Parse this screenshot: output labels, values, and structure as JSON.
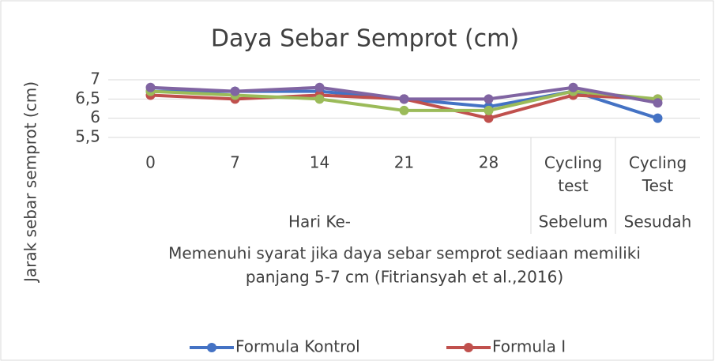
{
  "chart_data": {
    "type": "line",
    "title": "Daya Sebar Semprot (cm)",
    "ylabel": "Jarak sebar semprot (cm)",
    "xlabel": [
      "Memenuhi syarat jika daya sebar semprot sediaan memiliki",
      "panjang 5-7 cm (Fitriansyah et al.,2016)"
    ],
    "categories": [
      "0",
      "7",
      "14",
      "21",
      "28",
      "Cycling test",
      "Cycling Test"
    ],
    "category_groups": [
      {
        "label": "Hari Ke-",
        "span": 5
      },
      {
        "label": "Sebelum",
        "span": 1
      },
      {
        "label": "Sesudah",
        "span": 1
      }
    ],
    "ylim": [
      5.5,
      7
    ],
    "yticks": [
      {
        "value": 5.5,
        "label": "5,5"
      },
      6,
      {
        "value": 6.5,
        "label": "6,5"
      },
      7
    ],
    "grid": true,
    "legend": "bottom",
    "series": [
      {
        "name": "Formula Kontrol",
        "color": "#4472c4",
        "values": [
          6.7,
          6.7,
          6.7,
          6.5,
          6.3,
          6.7,
          6.0
        ]
      },
      {
        "name": "Formula I",
        "color": "#c0504d",
        "values": [
          6.6,
          6.5,
          6.6,
          6.5,
          6.0,
          6.6,
          6.5
        ]
      },
      {
        "color": "#9bbb59",
        "values": [
          6.7,
          6.6,
          6.5,
          6.2,
          6.2,
          6.7,
          6.5
        ]
      },
      {
        "color": "#8064a2",
        "values": [
          6.8,
          6.7,
          6.8,
          6.5,
          6.5,
          6.8,
          6.4
        ]
      }
    ]
  }
}
